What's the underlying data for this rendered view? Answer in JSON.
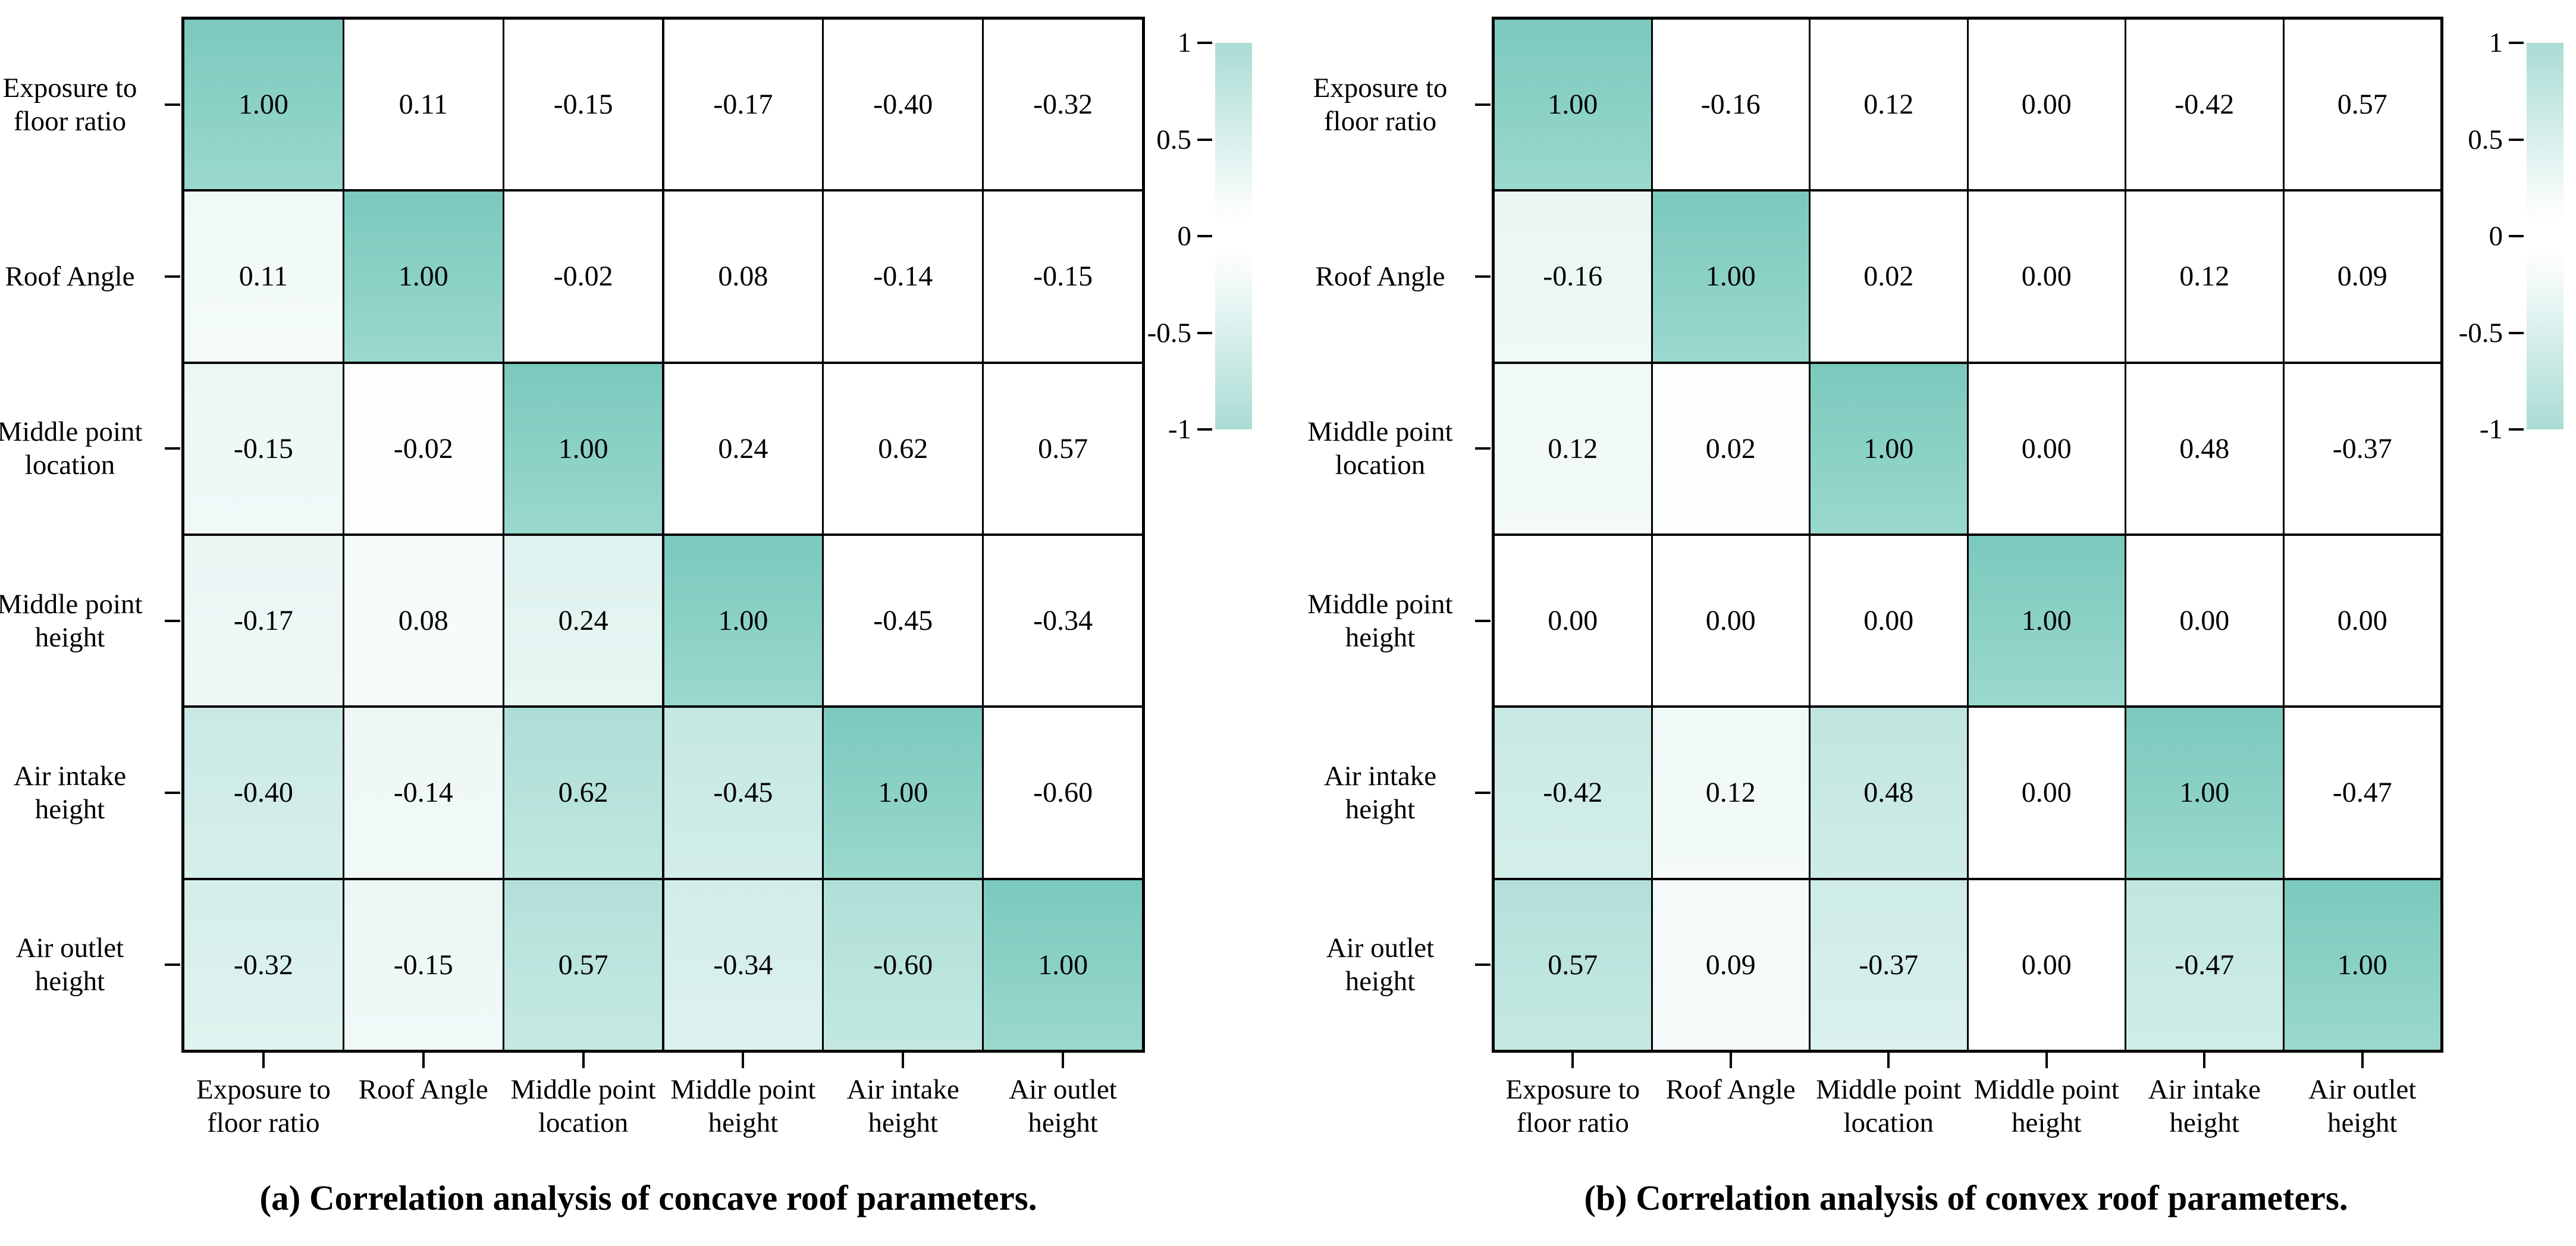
{
  "styles": {
    "teal_top": "#7bc9bd",
    "teal_bottom": "#9ad8cd",
    "colorbar_teal": "#aadcd5",
    "line_color": "#000000",
    "text_color": "#000000",
    "background": "#ffffff"
  },
  "chart_data": [
    {
      "type": "heatmap",
      "caption": "(a) Correlation analysis of concave roof parameters.",
      "variables": [
        "Exposure to floor ratio",
        "Roof Angle",
        "Middle point location",
        "Middle point height",
        "Air intake height",
        "Air outlet height"
      ],
      "variables_wrapped": [
        [
          "Exposure to",
          "floor ratio"
        ],
        [
          "Roof Angle"
        ],
        [
          "Middle point",
          "location"
        ],
        [
          "Middle point",
          "height"
        ],
        [
          "Air intake",
          "height"
        ],
        [
          "Air outlet",
          "height"
        ]
      ],
      "matrix": [
        [
          1.0,
          0.11,
          -0.15,
          -0.17,
          -0.4,
          -0.32
        ],
        [
          0.11,
          1.0,
          -0.02,
          0.08,
          -0.14,
          -0.15
        ],
        [
          -0.15,
          -0.02,
          1.0,
          0.24,
          0.62,
          0.57
        ],
        [
          -0.17,
          0.08,
          0.24,
          1.0,
          -0.45,
          -0.34
        ],
        [
          -0.4,
          -0.14,
          0.62,
          -0.45,
          1.0,
          -0.6
        ],
        [
          -0.32,
          -0.15,
          0.57,
          -0.34,
          -0.6,
          1.0
        ]
      ],
      "value_format": "two_decimals",
      "shading_rule": "diagonal and lower triangle tinted teal by |r|; upper triangle cells left white",
      "colorbar": {
        "tick_labels": [
          "1",
          "0.5",
          "0",
          "-0.5",
          "-1"
        ],
        "max": 1,
        "min": -1,
        "style": "teal at both extremes fading to white at 0"
      },
      "axis_ranges": {
        "rows": 6,
        "cols": 6
      },
      "grid_on": true,
      "legend_position": "right of heatmap, top-aligned"
    },
    {
      "type": "heatmap",
      "caption": "(b) Correlation analysis of convex roof parameters.",
      "variables": [
        "Exposure to floor ratio",
        "Roof Angle",
        "Middle point location",
        "Middle point height",
        "Air intake height",
        "Air outlet height"
      ],
      "variables_wrapped": [
        [
          "Exposure to",
          "floor ratio"
        ],
        [
          "Roof Angle"
        ],
        [
          "Middle point",
          "location"
        ],
        [
          "Middle point",
          "height"
        ],
        [
          "Air intake",
          "height"
        ],
        [
          "Air outlet",
          "height"
        ]
      ],
      "matrix": [
        [
          1.0,
          -0.16,
          0.12,
          0.0,
          -0.42,
          0.57
        ],
        [
          -0.16,
          1.0,
          0.02,
          0.0,
          0.12,
          0.09
        ],
        [
          0.12,
          0.02,
          1.0,
          0.0,
          0.48,
          -0.37
        ],
        [
          0.0,
          0.0,
          0.0,
          1.0,
          0.0,
          0.0
        ],
        [
          -0.42,
          0.12,
          0.48,
          0.0,
          1.0,
          -0.47
        ],
        [
          0.57,
          0.09,
          -0.37,
          0.0,
          -0.47,
          1.0
        ]
      ],
      "value_format": "two_decimals",
      "shading_rule": "diagonal and lower triangle tinted teal by |r|; upper triangle cells left white",
      "colorbar": {
        "tick_labels": [
          "1",
          "0.5",
          "0",
          "-0.5",
          "-1"
        ],
        "max": 1,
        "min": -1,
        "style": "teal at both extremes fading to white at 0"
      },
      "axis_ranges": {
        "rows": 6,
        "cols": 6
      },
      "grid_on": true,
      "legend_position": "right of heatmap, top-aligned"
    }
  ]
}
